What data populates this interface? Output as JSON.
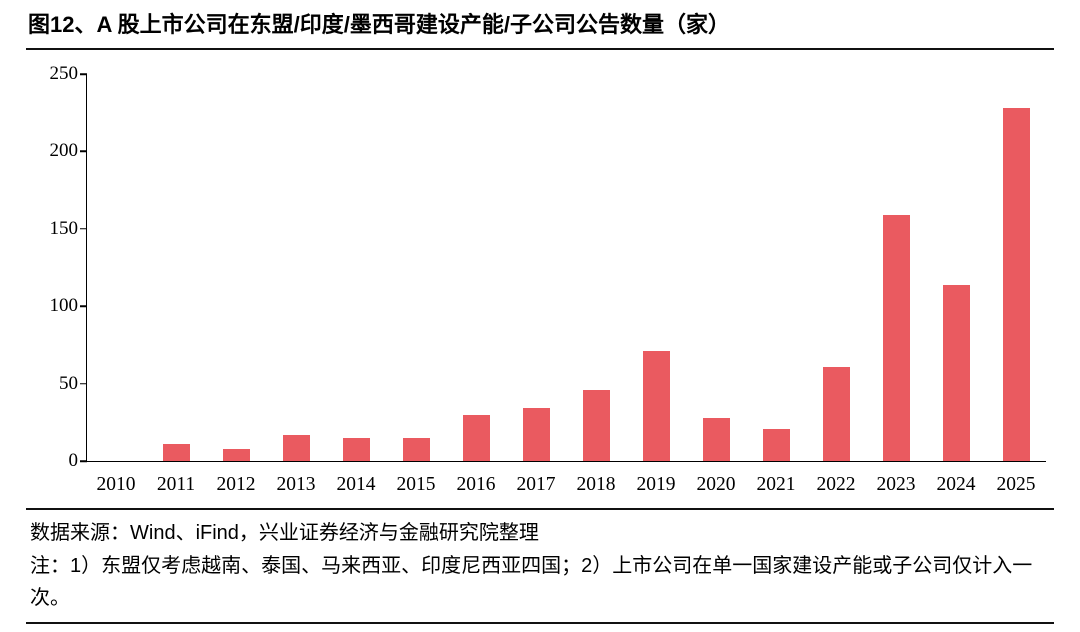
{
  "page": {
    "title": "图12、A 股上市公司在东盟/印度/墨西哥建设产能/子公司公告数量（家）"
  },
  "chart_data": {
    "type": "bar",
    "title": "A 股上市公司在东盟/印度/墨西哥建设产能/子公司公告数量（家）",
    "categories": [
      "2010",
      "2011",
      "2012",
      "2013",
      "2014",
      "2015",
      "2016",
      "2017",
      "2018",
      "2019",
      "2020",
      "2021",
      "2022",
      "2023",
      "2024",
      "2025"
    ],
    "values": [
      0,
      11,
      8,
      17,
      15,
      15,
      30,
      34,
      46,
      71,
      28,
      21,
      61,
      159,
      114,
      228
    ],
    "xlabel": "",
    "ylabel": "",
    "ylim": [
      0,
      250
    ],
    "ytick_step": 50,
    "grid": false,
    "legend": "none",
    "bar_color": "#EA5A60",
    "axis_color": "#000000"
  },
  "footer": {
    "source": "数据来源：Wind、iFind，兴业证券经济与金融研究院整理",
    "note": "注：1）东盟仅考虑越南、泰国、马来西亚、印度尼西亚四国；2）上市公司在单一国家建设产能或子公司仅计入一次。"
  }
}
